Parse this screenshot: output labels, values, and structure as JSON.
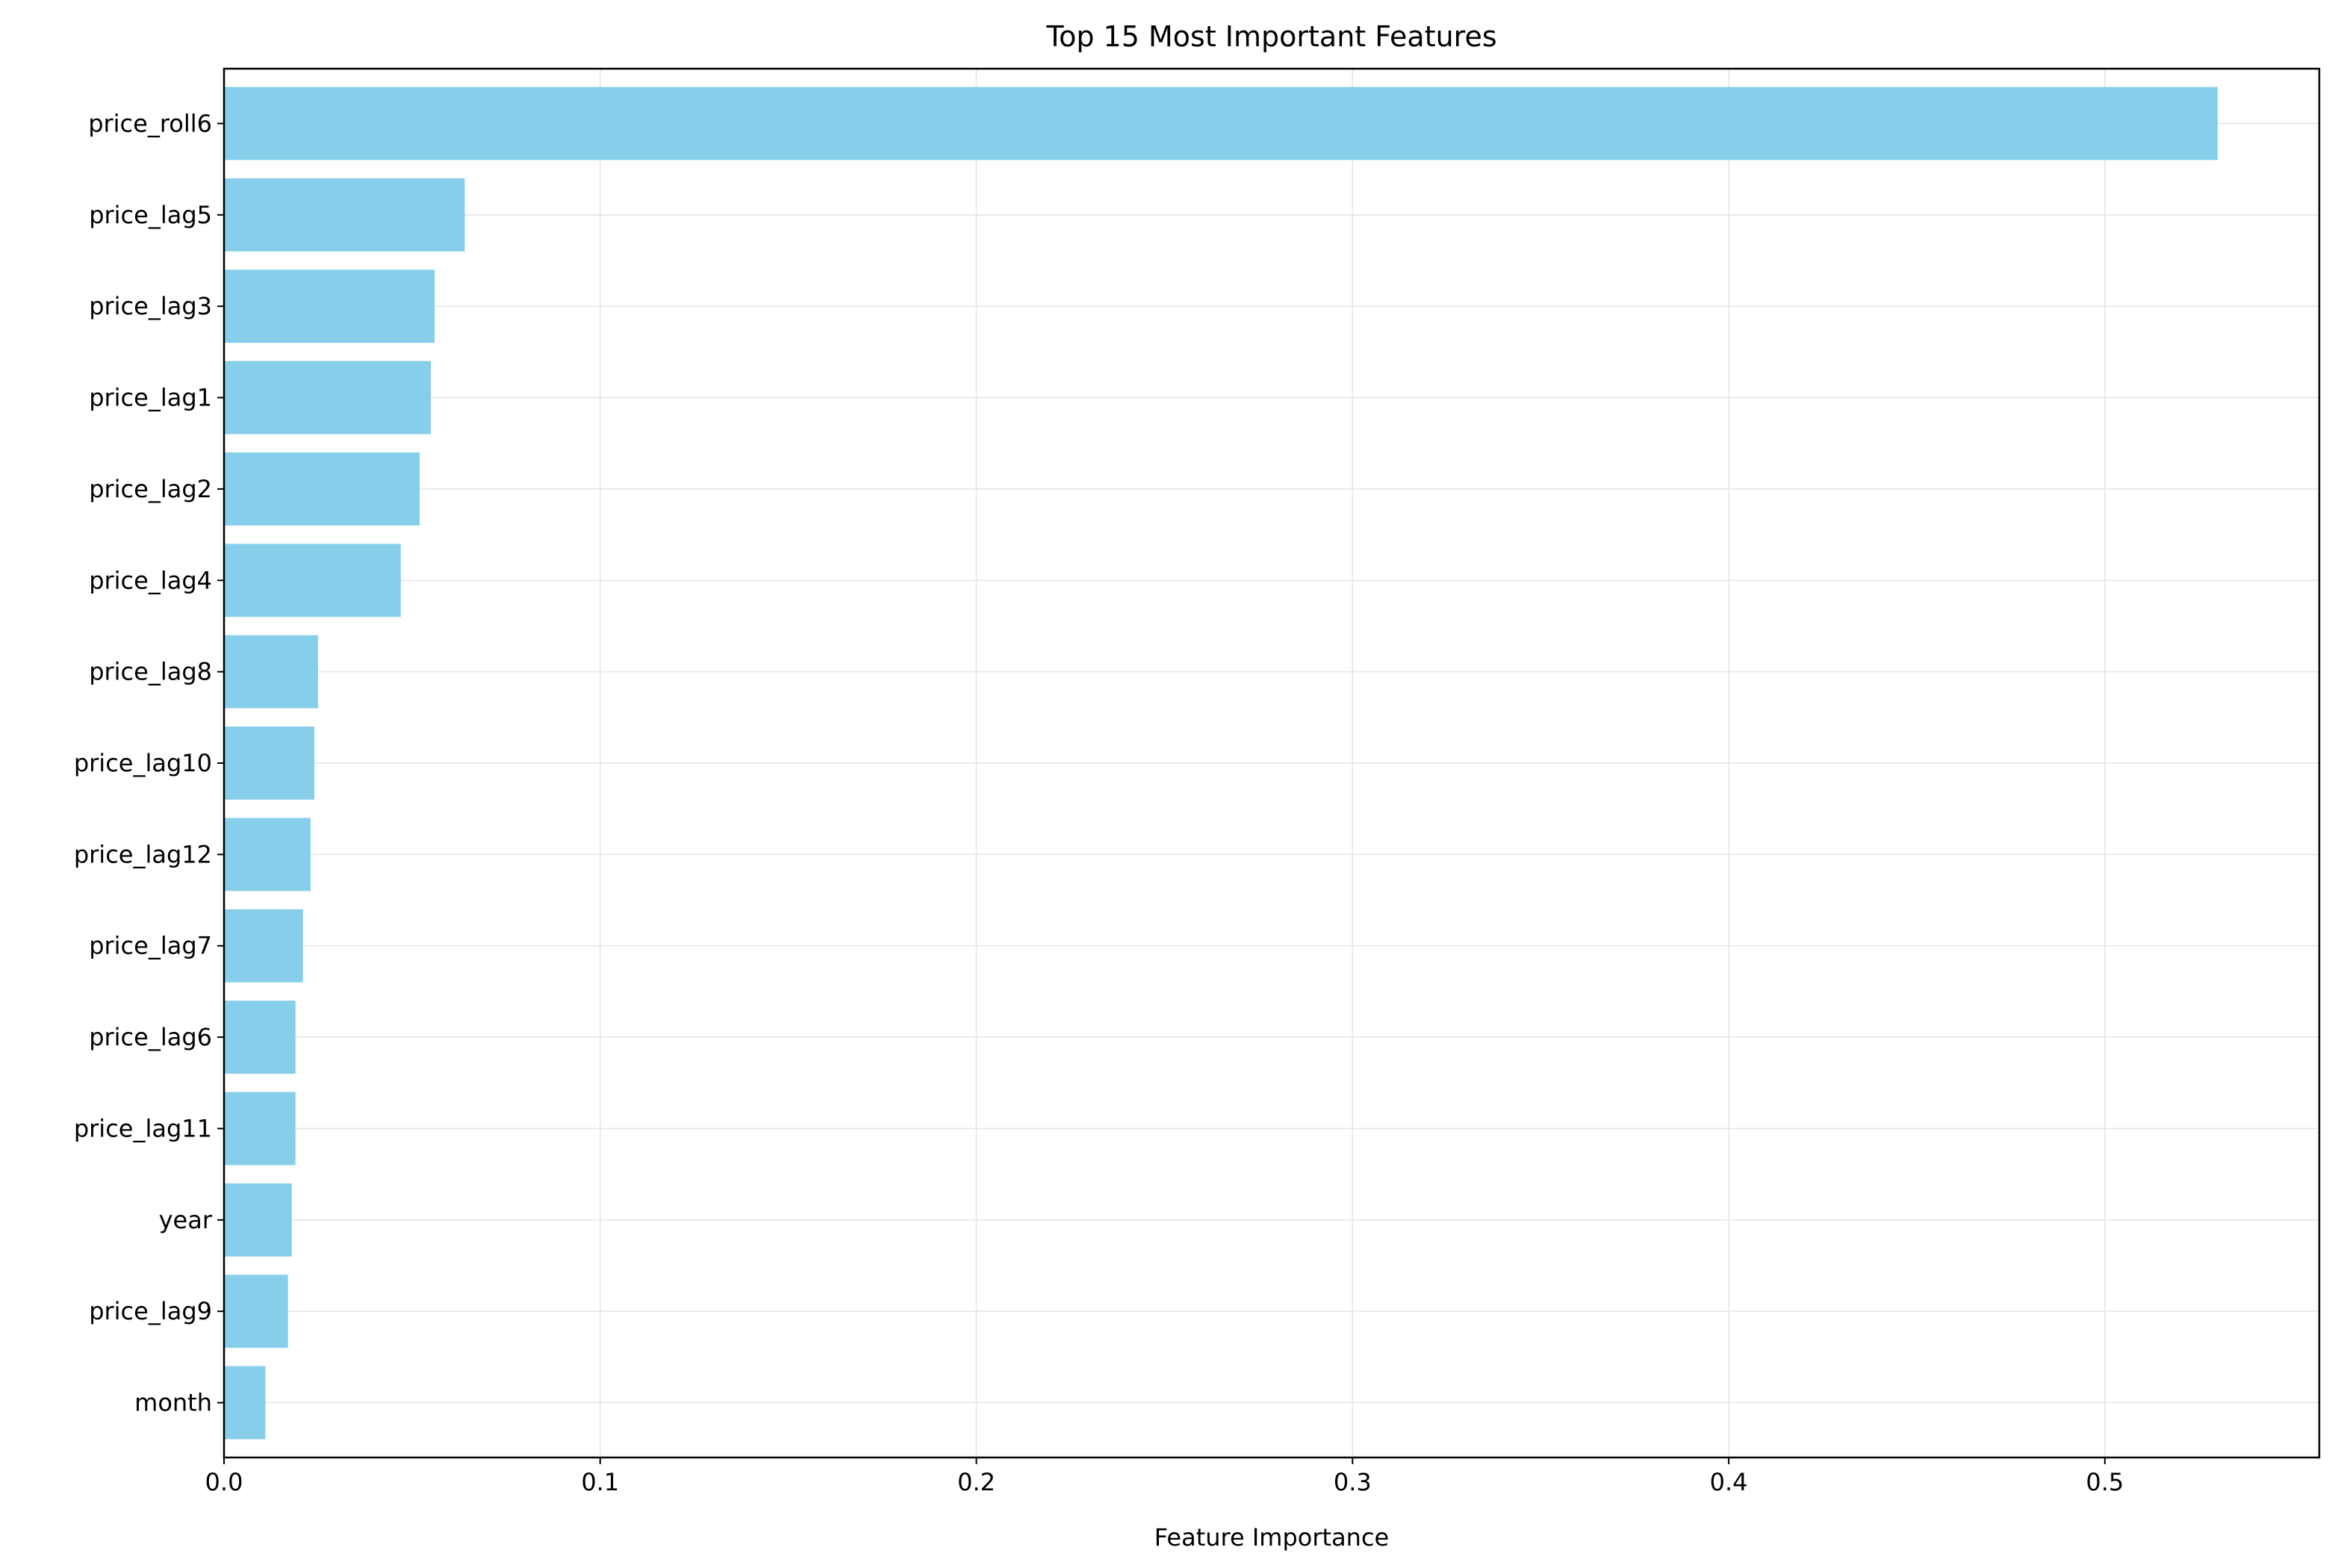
{
  "chart_data": {
    "type": "bar",
    "orientation": "horizontal",
    "title": "Top 15 Most Important Features",
    "xlabel": "Feature Importance",
    "ylabel": "",
    "categories": [
      "price_roll6",
      "price_lag5",
      "price_lag3",
      "price_lag1",
      "price_lag2",
      "price_lag4",
      "price_lag8",
      "price_lag10",
      "price_lag12",
      "price_lag7",
      "price_lag6",
      "price_lag11",
      "year",
      "price_lag9",
      "month"
    ],
    "values": [
      0.53,
      0.064,
      0.056,
      0.055,
      0.052,
      0.047,
      0.025,
      0.024,
      0.023,
      0.021,
      0.019,
      0.019,
      0.018,
      0.017,
      0.011
    ],
    "xlim": [
      0,
      0.557
    ],
    "xticks": [
      0.0,
      0.1,
      0.2,
      0.3,
      0.4,
      0.5
    ],
    "xtick_labels": [
      "0.0",
      "0.1",
      "0.2",
      "0.3",
      "0.4",
      "0.5"
    ],
    "grid": true,
    "legend": "none",
    "colors": {
      "bar": "#87ceeb",
      "grid": "#e6e6e6",
      "axis": "#000000"
    }
  }
}
